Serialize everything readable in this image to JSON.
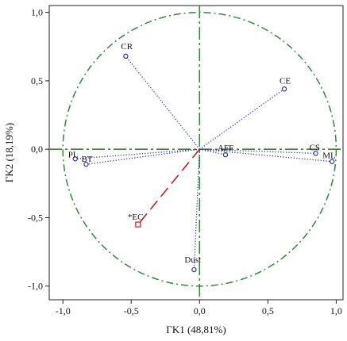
{
  "chart_data": {
    "type": "scatter",
    "subtype": "pca-correlation-circle",
    "title": "",
    "xlabel": "ΓΚ1 (48,81%)",
    "ylabel": "ΓΚ2 (18,19%)",
    "xlim": [
      -1.1,
      1.05
    ],
    "ylim": [
      -1.1,
      1.05
    ],
    "xticks": [
      -1.0,
      -0.5,
      0.0,
      0.5,
      1.0
    ],
    "yticks": [
      -1.0,
      -0.5,
      0.0,
      0.5,
      1.0
    ],
    "xtick_labels": [
      "-1,0",
      "-0,5",
      "0,0",
      "0,5",
      "1,0"
    ],
    "ytick_labels": [
      "-1,0",
      "-0,5",
      "0,0",
      "0,5",
      "1,0"
    ],
    "grid": false,
    "unit_circle": true,
    "series": [
      {
        "role": "active",
        "marker": "circle",
        "points": [
          {
            "label": "CR",
            "x": -0.54,
            "y": 0.68
          },
          {
            "label": "CE",
            "x": 0.62,
            "y": 0.44
          },
          {
            "label": "PL",
            "x": -0.91,
            "y": -0.07
          },
          {
            "label": "BT",
            "x": -0.83,
            "y": -0.11
          },
          {
            "label": "AFF",
            "x": 0.19,
            "y": -0.04
          },
          {
            "label": "CS",
            "x": 0.85,
            "y": -0.03
          },
          {
            "label": "ML",
            "x": 0.97,
            "y": -0.09
          },
          {
            "label": "Dust",
            "x": -0.04,
            "y": -0.88
          }
        ]
      },
      {
        "role": "supplementary",
        "marker": "square",
        "points": [
          {
            "label": "*EC",
            "x": -0.45,
            "y": -0.55
          }
        ]
      }
    ],
    "colors": {
      "active": "#2b2bbf",
      "supplementary": "#d11a1a",
      "axes_and_circle": "#2e8b2e",
      "frame": "#222222"
    }
  }
}
